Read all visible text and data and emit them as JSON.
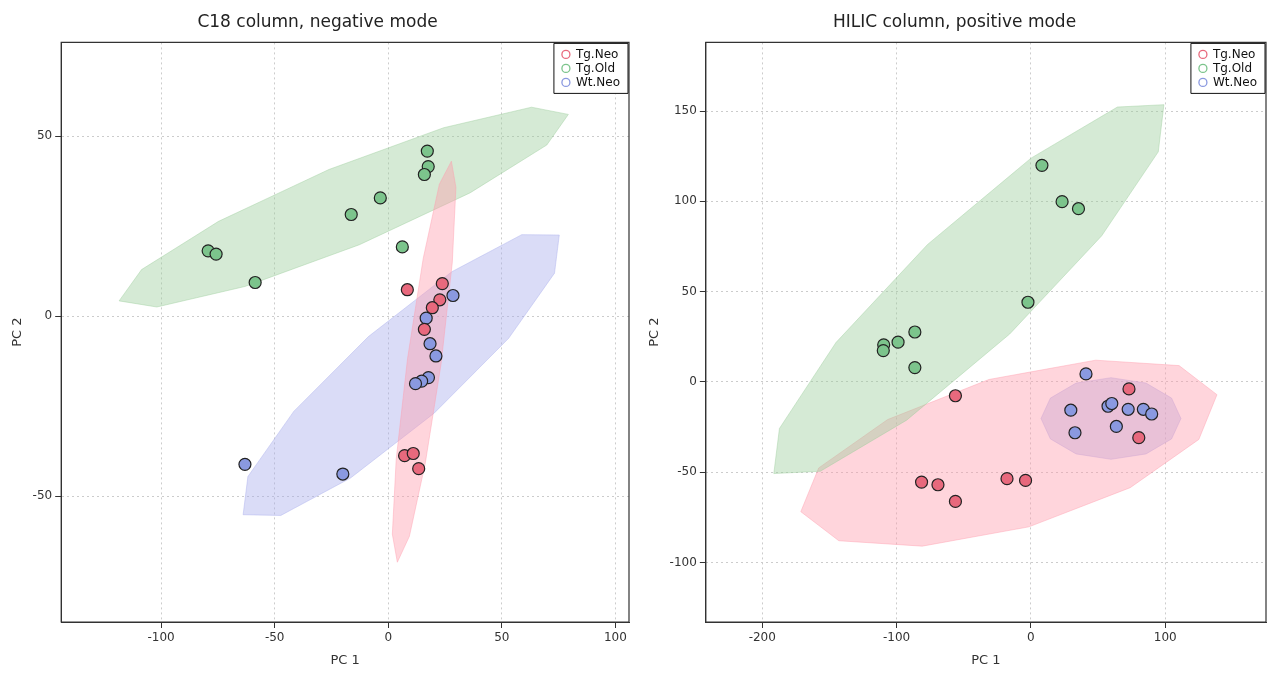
{
  "chart_data": [
    {
      "type": "scatter",
      "title": "C18 column, negative mode",
      "xlabel": "PC 1",
      "ylabel": "PC 2",
      "xlim": [
        -144,
        106
      ],
      "ylim": [
        -85,
        76
      ],
      "xticks": [
        -100,
        -50,
        0,
        50,
        100
      ],
      "yticks": [
        -50,
        0,
        50
      ],
      "grid": true,
      "legend": "top right",
      "marker": "circle",
      "series": [
        {
          "type": "area",
          "marker": "none",
          "color": "#ff9aab",
          "x": [
            27.8,
            29.8,
            28.2,
            23.3,
            16.3,
            9.3,
            4.0,
            1.8,
            3.5,
            8.5,
            15.4,
            22.5,
            27.8
          ],
          "values": [
            43.0,
            35.7,
            14.9,
            -13.1,
            -40.9,
            -61.2,
            -68.4,
            -60.6,
            -39.8,
            -11.8,
            16.0,
            36.6,
            43.0
          ]
        },
        {
          "type": "area",
          "marker": "none",
          "color": "#9ccc9c",
          "x": [
            79.3,
            69.8,
            36.0,
            -12.7,
            -63.1,
            -101.9,
            -118.5,
            -108.6,
            -74.7,
            -26.1,
            24.4,
            63.1,
            79.3
          ],
          "values": [
            56.0,
            47.5,
            34.2,
            19.8,
            8.2,
            2.5,
            4.2,
            12.9,
            26.3,
            40.7,
            52.3,
            58.0,
            56.0
          ]
        },
        {
          "type": "area",
          "marker": "none",
          "color": "#a6acec",
          "x": [
            75.3,
            73.2,
            53.0,
            20.2,
            -16.6,
            -47.3,
            -63.9,
            -61.8,
            -41.6,
            -8.7,
            28.0,
            58.8,
            75.3
          ],
          "values": [
            22.5,
            11.9,
            -6.2,
            -27.0,
            -45.0,
            -55.4,
            -55.2,
            -44.6,
            -26.5,
            -5.7,
            12.3,
            22.6,
            22.5
          ]
        },
        {
          "name": "Tg.Neo",
          "color": "#e8697d",
          "x": [
            23.8,
            8.4,
            22.7,
            19.4,
            15.9,
            7.2,
            11.0,
            13.4
          ],
          "values": [
            9.0,
            7.3,
            4.5,
            2.3,
            -3.7,
            -38.8,
            -38.2,
            -42.4
          ]
        },
        {
          "name": "Tg.Old",
          "color": "#7cc48c",
          "x": [
            -79.3,
            -75.8,
            -58.6,
            -16.3,
            -3.5,
            6.2,
            17.2,
            17.6,
            15.9
          ],
          "values": [
            18.1,
            17.2,
            9.3,
            28.2,
            32.8,
            19.2,
            45.8,
            41.5,
            39.3
          ]
        },
        {
          "name": "Wt.Neo",
          "color": "#8a99e0",
          "x": [
            28.5,
            16.7,
            18.4,
            21.0,
            17.7,
            14.7,
            12.0,
            -63.1,
            -20.0
          ],
          "values": [
            5.7,
            -0.6,
            -7.7,
            -11.1,
            -17.1,
            -18.1,
            -18.8,
            -41.2,
            -43.9
          ]
        }
      ]
    },
    {
      "type": "scatter",
      "title": "HILIC column, positive mode",
      "xlabel": "PC 1",
      "ylabel": "PC 2",
      "xlim": [
        -242,
        175
      ],
      "ylim": [
        -133,
        188
      ],
      "xticks": [
        -200,
        -100,
        0,
        100
      ],
      "yticks": [
        -100,
        -50,
        0,
        50,
        100,
        150
      ],
      "grid": true,
      "legend": "top right",
      "marker": "circle",
      "series": [
        {
          "type": "area",
          "marker": "none",
          "color": "#9ccc9c",
          "x": [
            99.0,
            94.8,
            52.7,
            -15.8,
            -92.5,
            -156.7,
            -191.4,
            -187.2,
            -145.1,
            -76.9,
            0.1,
            64.4,
            99.0
          ],
          "values": [
            153.5,
            127.4,
            80.9,
            26.5,
            -21.2,
            -49.5,
            -50.8,
            -25.8,
            21.8,
            76.1,
            123.9,
            152.2,
            153.5
          ]
        },
        {
          "type": "area",
          "marker": "none",
          "color": "#ff9aab",
          "x": [
            138.5,
            125.0,
            73.9,
            -1.5,
            -80.9,
            -143.0,
            -171.3,
            -158.0,
            -106.7,
            -31.3,
            48.2,
            110.3,
            138.5
          ],
          "values": [
            -7.1,
            -31.9,
            -58.6,
            -80.3,
            -91.0,
            -88.0,
            -71.9,
            -47.7,
            -20.9,
            1.3,
            12.0,
            9.0,
            -7.1
          ]
        },
        {
          "type": "area",
          "marker": "none",
          "color": "#a6acec",
          "x": [
            111.7,
            104.7,
            85.7,
            59.6,
            33.6,
            14.5,
            7.5,
            14.5,
            33.6,
            59.6,
            85.7,
            104.7,
            111.7
          ],
          "values": [
            -20.3,
            -9.0,
            -0.7,
            2.3,
            -0.7,
            -9.0,
            -20.3,
            -31.6,
            -39.9,
            -42.9,
            -39.9,
            -31.6,
            -20.3
          ]
        },
        {
          "name": "Tg.Neo",
          "color": "#e8697d",
          "x": [
            -56.2,
            -81.4,
            -69.2,
            -56.2,
            -17.8,
            -4.0,
            73.0,
            80.3
          ],
          "values": [
            -7.7,
            -55.5,
            -57.0,
            -66.2,
            -53.6,
            -54.6,
            -3.9,
            -30.9
          ]
        },
        {
          "name": "Tg.Old",
          "color": "#7cc48c",
          "x": [
            8.2,
            23.2,
            35.4,
            -2.2,
            -86.4,
            -98.9,
            -109.6,
            -109.9,
            -86.4
          ],
          "values": [
            119.9,
            99.8,
            95.9,
            44.1,
            27.6,
            22.0,
            20.5,
            17.3,
            7.9
          ]
        },
        {
          "name": "Wt.Neo",
          "color": "#8a99e0",
          "x": [
            41.0,
            29.7,
            32.8,
            57.4,
            60.2,
            72.4,
            63.6,
            83.7,
            89.9
          ],
          "values": [
            4.4,
            -15.7,
            -28.2,
            -13.5,
            -12.0,
            -15.2,
            -24.7,
            -15.2,
            -17.8
          ]
        }
      ]
    }
  ]
}
